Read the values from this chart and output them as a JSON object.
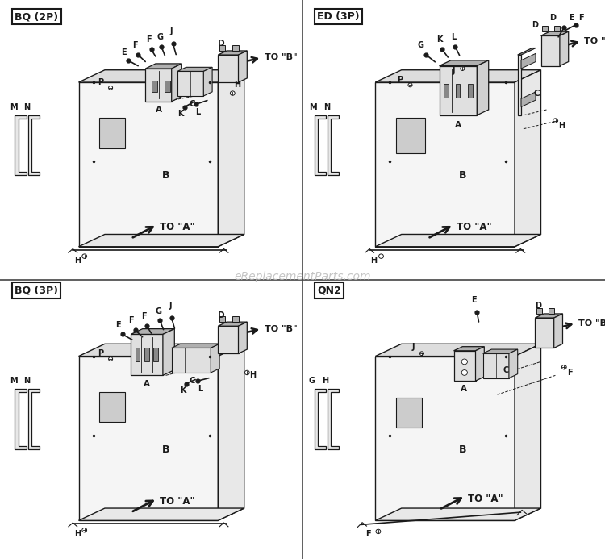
{
  "background_color": "#ffffff",
  "line_color": "#1a1a1a",
  "text_color": "#1a1a1a",
  "watermark": "eReplacementParts.com",
  "watermark_color": "#bbbbbb",
  "panel_face_color": "#f5f5f5",
  "panel_top_color": "#dddddd",
  "panel_right_color": "#e8e8e8",
  "component_color": "#e0e0e0",
  "component_dark": "#b0b0b0",
  "quadrant_labels": [
    "BQ (2P)",
    "ED (3P)",
    "BQ (3P)",
    "QN2"
  ]
}
